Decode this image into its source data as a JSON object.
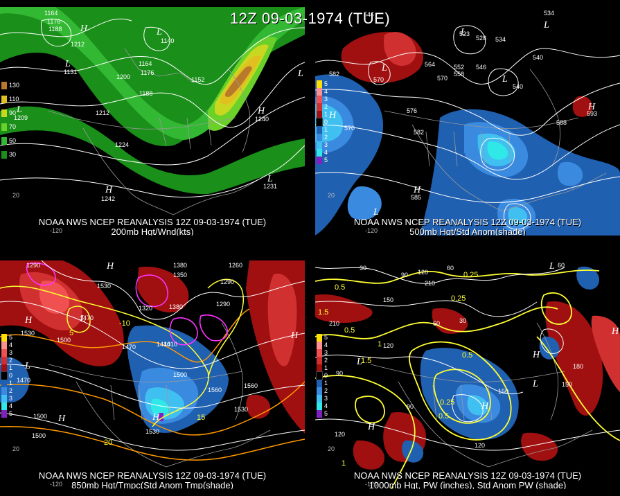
{
  "main_title": "12Z 09-03-1974 (TUE)",
  "colors": {
    "wind": [
      "#1a8f1a",
      "#32b832",
      "#6ad02a",
      "#c8d820",
      "#e0c020",
      "#b87a2a"
    ],
    "anom_neg": [
      "#2060b0",
      "#3a8ae0",
      "#40c0f0",
      "#30e8e8",
      "#8020c0"
    ],
    "anom_pos": [
      "#a01010",
      "#d03030",
      "#f05050",
      "#ff9090",
      "#ffe000"
    ],
    "contour_white": "#ffffff",
    "contour_yellow": "#ffff33",
    "contour_orange": "#ff9900",
    "contour_magenta": "#ff33ff",
    "border": "#9a9a9a"
  },
  "panels": [
    {
      "id": "p1",
      "caption_line1": "NOAA NWS NCEP REANALYSIS 12Z 09-03-1974 (TUE)",
      "caption_line2": "200mb Hgt/Wnd(kts)",
      "legend": [
        "130",
        "110",
        "90",
        "70",
        "50",
        "30"
      ],
      "contour_labels": [
        "1164",
        "1176",
        "1188",
        "1140",
        "1212",
        "1131",
        "1200",
        "1176",
        "1164",
        "1188",
        "1152",
        "1212",
        "1224",
        "1209",
        "1240",
        "1231",
        "1242"
      ],
      "pressure_centers": [
        "H",
        "L",
        "L",
        "L",
        "L",
        "H",
        "L",
        "H"
      ],
      "lat_labels": [
        "20"
      ],
      "lon_labels": [
        "-120"
      ]
    },
    {
      "id": "p2",
      "caption_line1": "NOAA NWS NCEP REANALYSIS 12Z 09-03-1974 (TUE)",
      "caption_line2": "500mb Hgt/Std Anom(shade)",
      "legend": [
        "5",
        "4",
        "3",
        "2",
        "1",
        "0",
        "1",
        "2",
        "3",
        "4",
        "5"
      ],
      "contour_labels": [
        "546",
        "534",
        "523",
        "528",
        "534",
        "570",
        "564",
        "552",
        "546",
        "540",
        "582",
        "570",
        "558",
        "576",
        "540",
        "588",
        "570",
        "582",
        "593",
        "585"
      ],
      "pressure_centers": [
        "L",
        "L",
        "L",
        "L",
        "H",
        "L",
        "H",
        "H"
      ],
      "lat_labels": [
        "20"
      ],
      "lon_labels": [
        "-120"
      ]
    },
    {
      "id": "p3",
      "caption_line1": "NOAA NWS NCEP REANALYSIS 12Z 09-03-1974 (TUE)",
      "caption_line2": "850mb Hgt/Tmpc(Std Anom Tmp(shade)",
      "legend": [
        "5",
        "4",
        "3",
        "2",
        "1",
        "0",
        "1",
        "2",
        "3",
        "4",
        "5"
      ],
      "contour_labels": [
        "1290",
        "1380",
        "1260",
        "1350",
        "1290",
        "1530",
        "1320",
        "1380",
        "1410",
        "1500",
        "1470",
        "1530",
        "1500",
        "1470",
        "1440",
        "1560",
        "1530",
        "1500",
        "1470",
        "1530",
        "1500",
        "1560",
        "1290"
      ],
      "temp_labels": [
        "-10",
        "5",
        "15",
        "20"
      ],
      "pressure_centers": [
        "H",
        "L",
        "H",
        "L",
        "H",
        "H",
        "H"
      ],
      "lat_labels": [
        "20"
      ],
      "lon_labels": [
        "-120"
      ]
    },
    {
      "id": "p4",
      "caption_line1": "NOAA NWS NCEP REANALYSIS 12Z 09-03-1974 (TUE)",
      "caption_line2": "1000mb Hgt, PW (inches), Std Anom PW (shade)",
      "legend": [
        "5",
        "4",
        "3",
        "2",
        "1",
        "0",
        "1",
        "2",
        "3",
        "4",
        "5"
      ],
      "contour_labels": [
        "30",
        "90",
        "120",
        "60",
        "210",
        "150",
        "60",
        "30",
        "210",
        "120",
        "180",
        "150",
        "90",
        "150",
        "120",
        "90",
        "120",
        "60"
      ],
      "pw_labels": [
        "0.5",
        "0.25",
        "1.5",
        "0.5",
        "0.25",
        "1",
        "0.5",
        "1.5",
        "0.25",
        "0.5",
        "1"
      ],
      "pressure_centers": [
        "L",
        "L",
        "H",
        "L",
        "H",
        "H",
        "H"
      ],
      "lat_labels": [
        "20"
      ],
      "lon_labels": [
        "-120"
      ]
    }
  ]
}
